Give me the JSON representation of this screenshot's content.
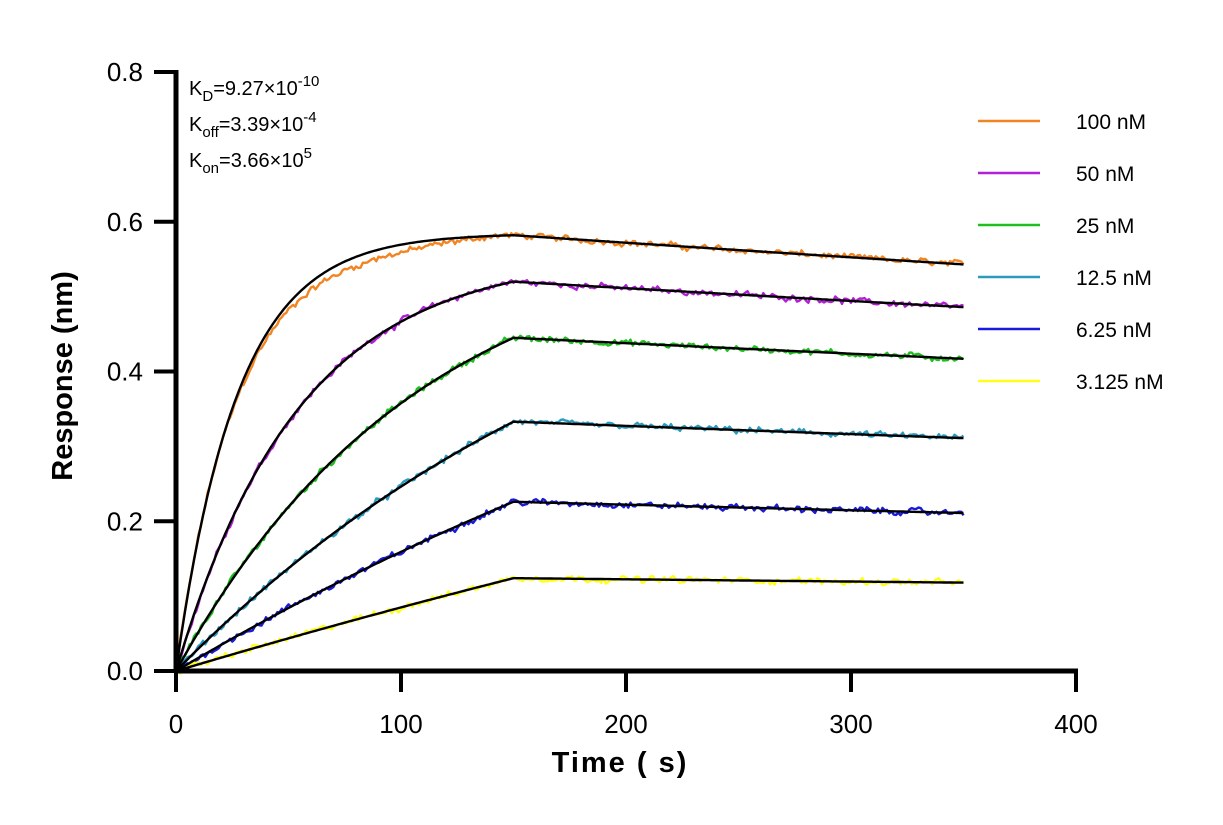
{
  "chart_data": {
    "type": "line",
    "xlabel": "Time ( s)",
    "ylabel": "Response (nm)",
    "xlim": [
      0,
      400
    ],
    "ylim": [
      0,
      0.8
    ],
    "x_ticks": [
      "0",
      "100",
      "200",
      "300",
      "400"
    ],
    "y_ticks": [
      "0.0",
      "0.2",
      "0.4",
      "0.6",
      "0.8"
    ],
    "grid": false,
    "legend_position": "top-right",
    "annotations": [
      {
        "main": "K",
        "sub": "D",
        "rest": "=9.27×10",
        "sup": "-10"
      },
      {
        "main": "K",
        "sub": "off",
        "rest": "=3.39×10",
        "sup": "-4"
      },
      {
        "main": "K",
        "sub": "on",
        "rest": "=3.66×10",
        "sup": "5"
      }
    ],
    "association_end": 150,
    "dissociation_end": 350,
    "fit_color": "#000000",
    "series": [
      {
        "name": "100 nM",
        "color": "#F28522",
        "plateau_max": 0.582,
        "end_value": 0.543,
        "kobs": 0.0366
      },
      {
        "name": "50 nM",
        "color": "#B21FD6",
        "plateau_max": 0.52,
        "end_value": 0.486,
        "kobs": 0.0183
      },
      {
        "name": "25 nM",
        "color": "#1EBF1E",
        "plateau_max": 0.445,
        "end_value": 0.417,
        "kobs": 0.0092
      },
      {
        "name": "12.5 nM",
        "color": "#2A9BBF",
        "plateau_max": 0.333,
        "end_value": 0.311,
        "kobs": 0.0046
      },
      {
        "name": "6.25 nM",
        "color": "#1A1ADB",
        "plateau_max": 0.226,
        "end_value": 0.211,
        "kobs": 0.0023
      },
      {
        "name": "3.125 nM",
        "color": "#FFFF1A",
        "plateau_max": 0.124,
        "end_value": 0.118,
        "kobs": 0.0011
      }
    ]
  }
}
